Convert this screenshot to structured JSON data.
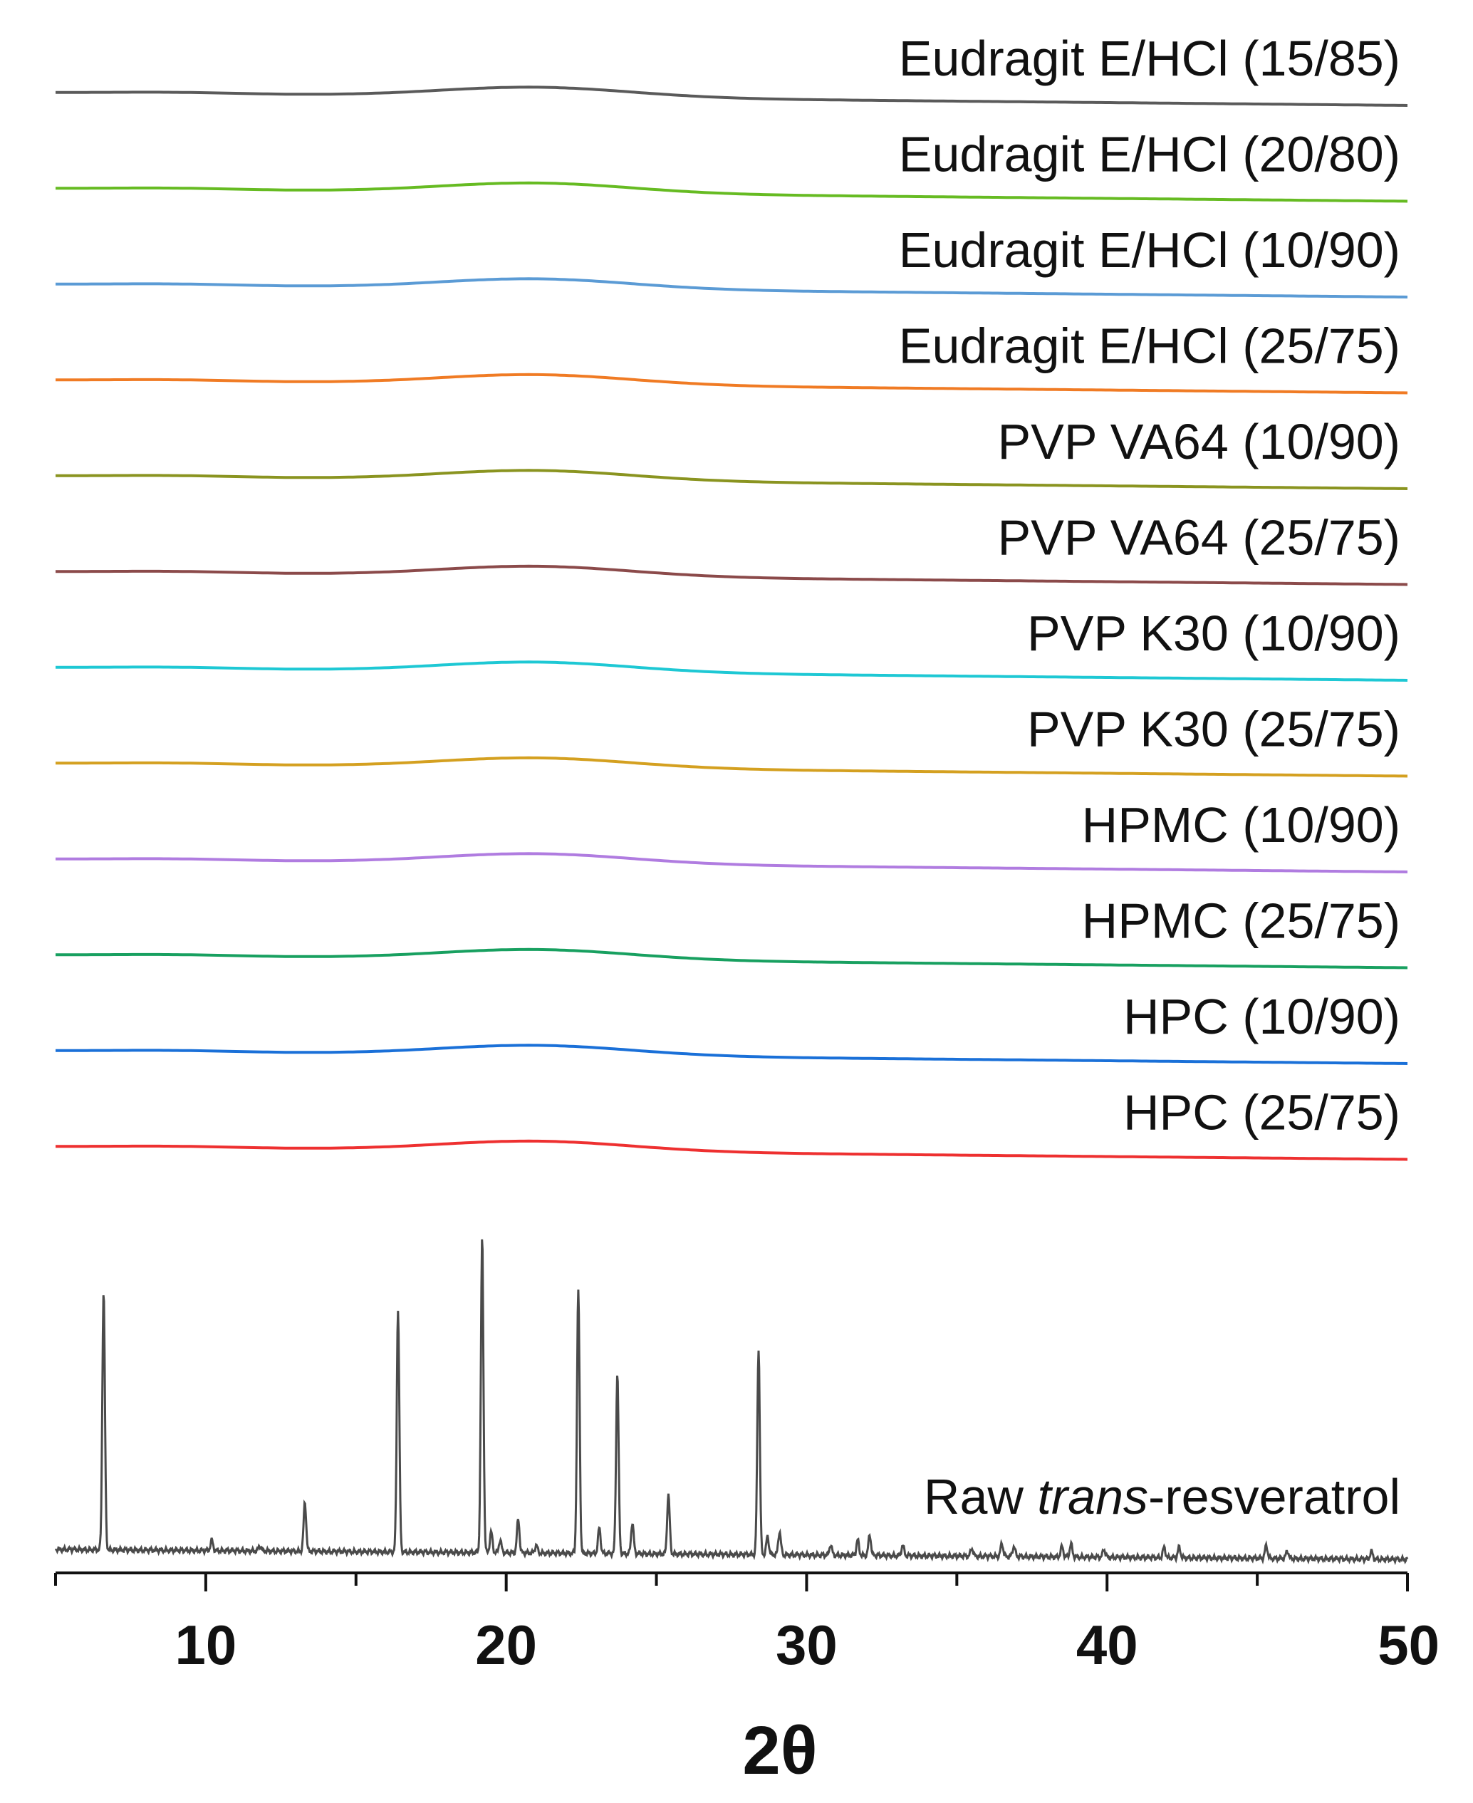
{
  "chart_data": {
    "type": "line",
    "xlabel": "2θ",
    "ylabel": "",
    "title": "",
    "xlim": [
      5,
      50
    ],
    "x_ticks": [
      10,
      20,
      30,
      40,
      50
    ],
    "x_minor_step": 5,
    "grid": false,
    "y_axis_visible": false,
    "series": [
      {
        "name": "Eudragit E/HCl (15/85)",
        "color": "#5a5a5a",
        "profile": "amorphous-halo"
      },
      {
        "name": "Eudragit E/HCl (20/80)",
        "color": "#66bb22",
        "profile": "amorphous-halo"
      },
      {
        "name": "Eudragit E/HCl (10/90)",
        "color": "#5b9bd5",
        "profile": "amorphous-halo"
      },
      {
        "name": "Eudragit E/HCl (25/75)",
        "color": "#f07b24",
        "profile": "amorphous-halo"
      },
      {
        "name": "PVP VA64 (10/90)",
        "color": "#8a9420",
        "profile": "amorphous-halo"
      },
      {
        "name": "PVP VA64 (25/75)",
        "color": "#8b4a4a",
        "profile": "amorphous-halo"
      },
      {
        "name": "PVP K30 (10/90)",
        "color": "#1ec8d4",
        "profile": "amorphous-halo"
      },
      {
        "name": "PVP K30 (25/75)",
        "color": "#d4a020",
        "profile": "amorphous-halo"
      },
      {
        "name": "HPMC (10/90)",
        "color": "#b07ce0",
        "profile": "amorphous-halo"
      },
      {
        "name": "HPMC (25/75)",
        "color": "#18a060",
        "profile": "amorphous-halo"
      },
      {
        "name": "HPC (10/90)",
        "color": "#1a70d8",
        "profile": "amorphous-halo"
      },
      {
        "name": "HPC (25/75)",
        "color": "#ee3030",
        "profile": "amorphous-halo"
      }
    ],
    "raw_series": {
      "name_parts": [
        {
          "text": "Raw ",
          "italic": false
        },
        {
          "text": "trans",
          "italic": true
        },
        {
          "text": "-resveratrol",
          "italic": false
        }
      ],
      "color": "#4a4a4a",
      "peaks": [
        {
          "x": 6.6,
          "intensity": 1.0
        },
        {
          "x": 10.2,
          "intensity": 0.04
        },
        {
          "x": 11.8,
          "intensity": 0.02
        },
        {
          "x": 13.3,
          "intensity": 0.19
        },
        {
          "x": 16.4,
          "intensity": 0.94
        },
        {
          "x": 19.2,
          "intensity": 1.22
        },
        {
          "x": 19.5,
          "intensity": 0.08
        },
        {
          "x": 19.8,
          "intensity": 0.05
        },
        {
          "x": 20.4,
          "intensity": 0.13
        },
        {
          "x": 21.0,
          "intensity": 0.03
        },
        {
          "x": 22.4,
          "intensity": 1.02
        },
        {
          "x": 23.1,
          "intensity": 0.1
        },
        {
          "x": 23.7,
          "intensity": 0.7
        },
        {
          "x": 24.2,
          "intensity": 0.12
        },
        {
          "x": 25.4,
          "intensity": 0.23
        },
        {
          "x": 28.4,
          "intensity": 0.8
        },
        {
          "x": 28.7,
          "intensity": 0.07
        },
        {
          "x": 29.1,
          "intensity": 0.09
        },
        {
          "x": 30.8,
          "intensity": 0.04
        },
        {
          "x": 31.7,
          "intensity": 0.06
        },
        {
          "x": 32.1,
          "intensity": 0.08
        },
        {
          "x": 33.2,
          "intensity": 0.04
        },
        {
          "x": 35.5,
          "intensity": 0.03
        },
        {
          "x": 36.5,
          "intensity": 0.05
        },
        {
          "x": 36.9,
          "intensity": 0.04
        },
        {
          "x": 38.5,
          "intensity": 0.04
        },
        {
          "x": 38.8,
          "intensity": 0.05
        },
        {
          "x": 39.9,
          "intensity": 0.03
        },
        {
          "x": 41.9,
          "intensity": 0.04
        },
        {
          "x": 42.4,
          "intensity": 0.04
        },
        {
          "x": 45.3,
          "intensity": 0.05
        },
        {
          "x": 46.0,
          "intensity": 0.03
        },
        {
          "x": 48.8,
          "intensity": 0.03
        }
      ]
    }
  }
}
